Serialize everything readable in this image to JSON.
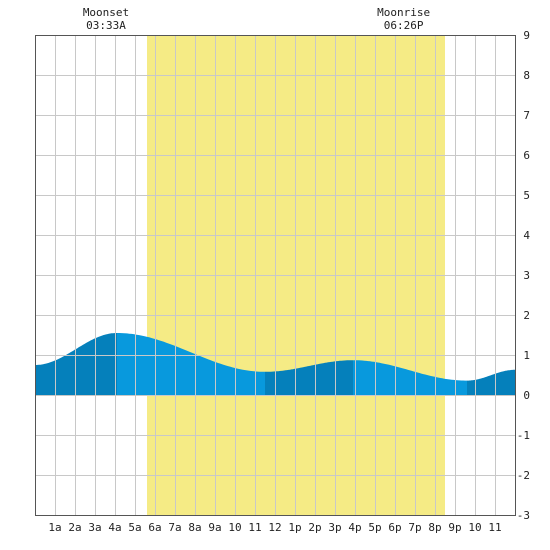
{
  "chart_data": {
    "type": "area",
    "title": "",
    "xlabel": "",
    "ylabel": "",
    "x_range": [
      0,
      24
    ],
    "ylim": [
      -3,
      9
    ],
    "y_ticks": [
      -3,
      -2,
      -1,
      0,
      1,
      2,
      3,
      4,
      5,
      6,
      7,
      8,
      9
    ],
    "x_ticks": [
      {
        "x": 1,
        "label": "1a"
      },
      {
        "x": 2,
        "label": "2a"
      },
      {
        "x": 3,
        "label": "3a"
      },
      {
        "x": 4,
        "label": "4a"
      },
      {
        "x": 5,
        "label": "5a"
      },
      {
        "x": 6,
        "label": "6a"
      },
      {
        "x": 7,
        "label": "7a"
      },
      {
        "x": 8,
        "label": "8a"
      },
      {
        "x": 9,
        "label": "9a"
      },
      {
        "x": 10,
        "label": "10"
      },
      {
        "x": 11,
        "label": "11"
      },
      {
        "x": 12,
        "label": "12"
      },
      {
        "x": 13,
        "label": "1p"
      },
      {
        "x": 14,
        "label": "2p"
      },
      {
        "x": 15,
        "label": "3p"
      },
      {
        "x": 16,
        "label": "4p"
      },
      {
        "x": 17,
        "label": "5p"
      },
      {
        "x": 18,
        "label": "6p"
      },
      {
        "x": 19,
        "label": "7p"
      },
      {
        "x": 20,
        "label": "8p"
      },
      {
        "x": 21,
        "label": "9p"
      },
      {
        "x": 22,
        "label": "10"
      },
      {
        "x": 23,
        "label": "11"
      }
    ],
    "grid": true,
    "daylight": {
      "start": 5.6,
      "end": 20.5,
      "color": "#f5eb85"
    },
    "colors": {
      "tide_light": "#0899dd",
      "tide_dark": "#0580bb"
    },
    "tide_extremes": [
      {
        "x": 0,
        "y": 0.75,
        "kind": "start"
      },
      {
        "x": 4.1,
        "y": 1.55,
        "kind": "high"
      },
      {
        "x": 11.5,
        "y": 0.58,
        "kind": "low"
      },
      {
        "x": 15.9,
        "y": 0.87,
        "kind": "high"
      },
      {
        "x": 21.6,
        "y": 0.36,
        "kind": "low"
      },
      {
        "x": 24,
        "y": 0.63,
        "kind": "end"
      }
    ],
    "annotations": [
      {
        "id": "moonset",
        "label": "Moonset",
        "time": "03:33A",
        "x": 3.55
      },
      {
        "id": "moonrise",
        "label": "Moonrise",
        "time": "06:26P",
        "x": 18.43
      }
    ]
  }
}
